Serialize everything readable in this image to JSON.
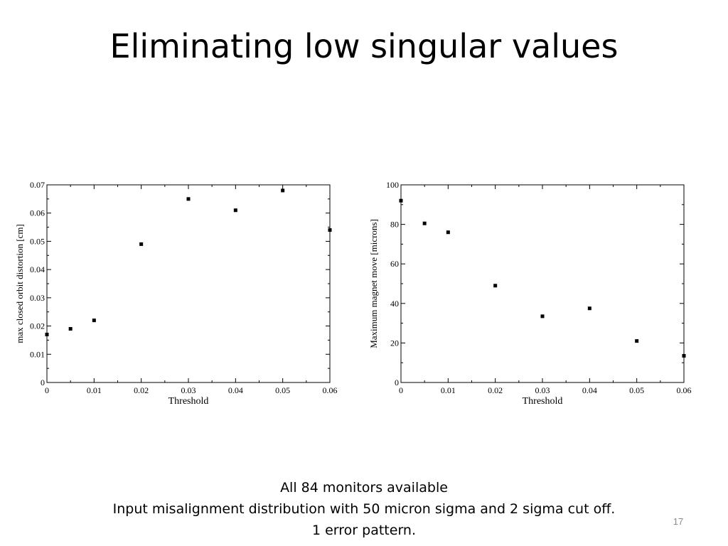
{
  "slide": {
    "title": "Eliminating low singular values",
    "captions": [
      "All 84 monitors available",
      "Input misalignment distribution with 50 micron sigma and 2 sigma cut off.",
      "1 error pattern."
    ],
    "page_number": "17"
  },
  "chart_data": [
    {
      "type": "scatter",
      "xlabel": "Threshold",
      "ylabel": "max closed orbit distortion [cm]",
      "xlim": [
        0,
        0.06
      ],
      "ylim": [
        0,
        0.07
      ],
      "x_ticks": [
        0,
        0.01,
        0.02,
        0.03,
        0.04,
        0.05,
        0.06
      ],
      "x_tick_labels": [
        "0",
        "0.01",
        "0.02",
        "0.03",
        "0.04",
        "0.05",
        "0.06"
      ],
      "y_ticks": [
        0,
        0.01,
        0.02,
        0.03,
        0.04,
        0.05,
        0.06,
        0.07
      ],
      "y_tick_labels": [
        "0",
        "0.01",
        "0.02",
        "0.03",
        "0.04",
        "0.05",
        "0.06",
        "0.07"
      ],
      "grid": false,
      "points": [
        {
          "x": 0,
          "y": 0.017
        },
        {
          "x": 0.005,
          "y": 0.019
        },
        {
          "x": 0.01,
          "y": 0.022
        },
        {
          "x": 0.02,
          "y": 0.049
        },
        {
          "x": 0.03,
          "y": 0.065
        },
        {
          "x": 0.04,
          "y": 0.061
        },
        {
          "x": 0.05,
          "y": 0.068
        },
        {
          "x": 0.06,
          "y": 0.054
        }
      ]
    },
    {
      "type": "scatter",
      "xlabel": "Threshold",
      "ylabel": "Maximum magnet move [microns]",
      "xlim": [
        0,
        0.06
      ],
      "ylim": [
        0,
        100
      ],
      "x_ticks": [
        0,
        0.01,
        0.02,
        0.03,
        0.04,
        0.05,
        0.06
      ],
      "x_tick_labels": [
        "0",
        "0.01",
        "0.02",
        "0.03",
        "0.04",
        "0.05",
        "0.06"
      ],
      "y_ticks": [
        0,
        20,
        40,
        60,
        80,
        100
      ],
      "y_tick_labels": [
        "0",
        "20",
        "40",
        "60",
        "80",
        "100"
      ],
      "grid": false,
      "points": [
        {
          "x": 0,
          "y": 92
        },
        {
          "x": 0.005,
          "y": 80.5
        },
        {
          "x": 0.01,
          "y": 76
        },
        {
          "x": 0.02,
          "y": 49
        },
        {
          "x": 0.03,
          "y": 33.5
        },
        {
          "x": 0.04,
          "y": 37.5
        },
        {
          "x": 0.05,
          "y": 21
        },
        {
          "x": 0.06,
          "y": 13.5
        }
      ]
    }
  ]
}
